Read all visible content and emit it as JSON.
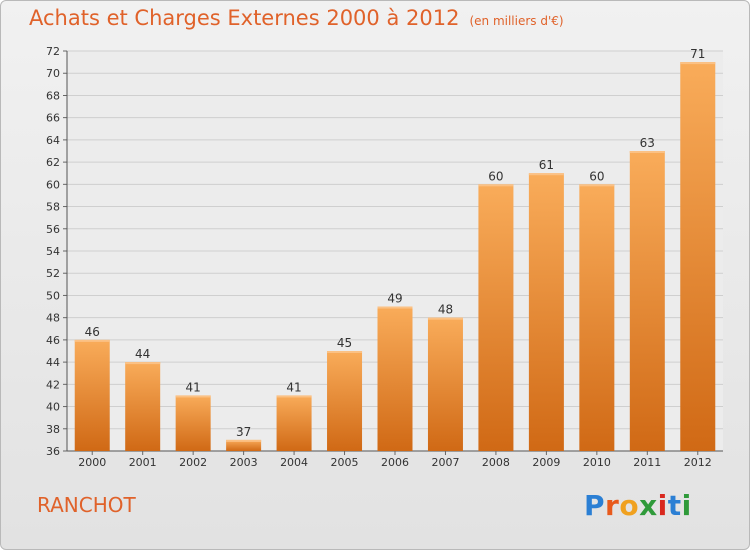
{
  "title": "Achats et Charges Externes 2000 à 2012",
  "unit": "(en milliers d'€)",
  "place": "RANCHOT",
  "brand": "Proxiti",
  "colors": {
    "bar_light": "#f7a954",
    "bar_dark": "#d46a16",
    "text_accent": "#e0622a",
    "grid": "#cfcfcf"
  },
  "chart_data": {
    "type": "bar",
    "title": "Achats et Charges Externes 2000 à 2012",
    "subtitle": "(en milliers d'€)",
    "categories": [
      "2000",
      "2001",
      "2002",
      "2003",
      "2004",
      "2005",
      "2006",
      "2007",
      "2008",
      "2009",
      "2010",
      "2011",
      "2012"
    ],
    "values": [
      46,
      44,
      41,
      37,
      41,
      45,
      49,
      48,
      60,
      61,
      60,
      63,
      71
    ],
    "ylim": [
      36,
      72
    ],
    "yticks": [
      36,
      38,
      40,
      42,
      44,
      46,
      48,
      50,
      52,
      54,
      56,
      58,
      60,
      62,
      64,
      66,
      68,
      70,
      72
    ],
    "grid": true,
    "xlabel": "",
    "ylabel": ""
  }
}
